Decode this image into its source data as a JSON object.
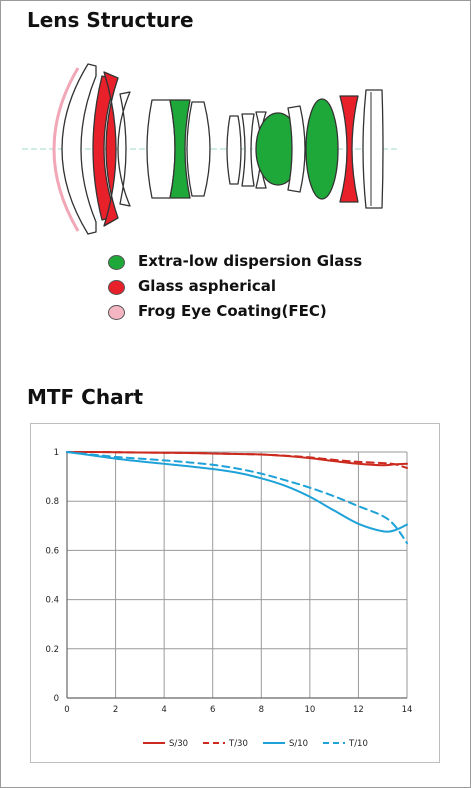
{
  "lens_section": {
    "title": "Lens Structure",
    "legend": [
      {
        "label": "Extra-low dispersion Glass",
        "color": "#1fa83a"
      },
      {
        "label": "Glass aspherical",
        "color": "#e8202a"
      },
      {
        "label": "Frog Eye Coating(FEC)",
        "color": "#f4b6c2"
      }
    ]
  },
  "mtf_section": {
    "title": "MTF Chart"
  },
  "chart_data": {
    "type": "line",
    "title": "",
    "xlabel": "",
    "ylabel": "",
    "xlim": [
      0,
      14
    ],
    "ylim": [
      0,
      1
    ],
    "x_ticks": [
      "0",
      "2",
      "4",
      "6",
      "8",
      "10",
      "12",
      "14"
    ],
    "y_ticks": [
      "0",
      "0.2",
      "0.4",
      "0.6",
      "0.8",
      "1"
    ],
    "grid": true,
    "legend_position": "bottom",
    "x": [
      0,
      1,
      2,
      3,
      4,
      5,
      6,
      7,
      8,
      9,
      10,
      11,
      12,
      13,
      13.5,
      14
    ],
    "series": [
      {
        "name": "S/30",
        "color": "#cc2a1e",
        "dash": "solid",
        "values": [
          1.0,
          1.0,
          0.999,
          0.998,
          0.997,
          0.996,
          0.994,
          0.992,
          0.99,
          0.984,
          0.975,
          0.963,
          0.952,
          0.946,
          0.95,
          0.952
        ]
      },
      {
        "name": "T/30",
        "color": "#cc2a1e",
        "dash": "dashed",
        "values": [
          1.0,
          1.0,
          0.999,
          0.998,
          0.997,
          0.996,
          0.994,
          0.992,
          0.99,
          0.985,
          0.978,
          0.968,
          0.96,
          0.955,
          0.95,
          0.935
        ]
      },
      {
        "name": "S/10",
        "color": "#1ea2d8",
        "dash": "solid",
        "values": [
          1.0,
          0.987,
          0.973,
          0.962,
          0.952,
          0.942,
          0.931,
          0.916,
          0.893,
          0.862,
          0.818,
          0.762,
          0.708,
          0.678,
          0.682,
          0.705
        ]
      },
      {
        "name": "T/10",
        "color": "#1ea2d8",
        "dash": "dashed",
        "values": [
          1.0,
          0.99,
          0.98,
          0.973,
          0.966,
          0.958,
          0.948,
          0.933,
          0.912,
          0.885,
          0.855,
          0.82,
          0.78,
          0.74,
          0.7,
          0.63
        ]
      }
    ]
  }
}
